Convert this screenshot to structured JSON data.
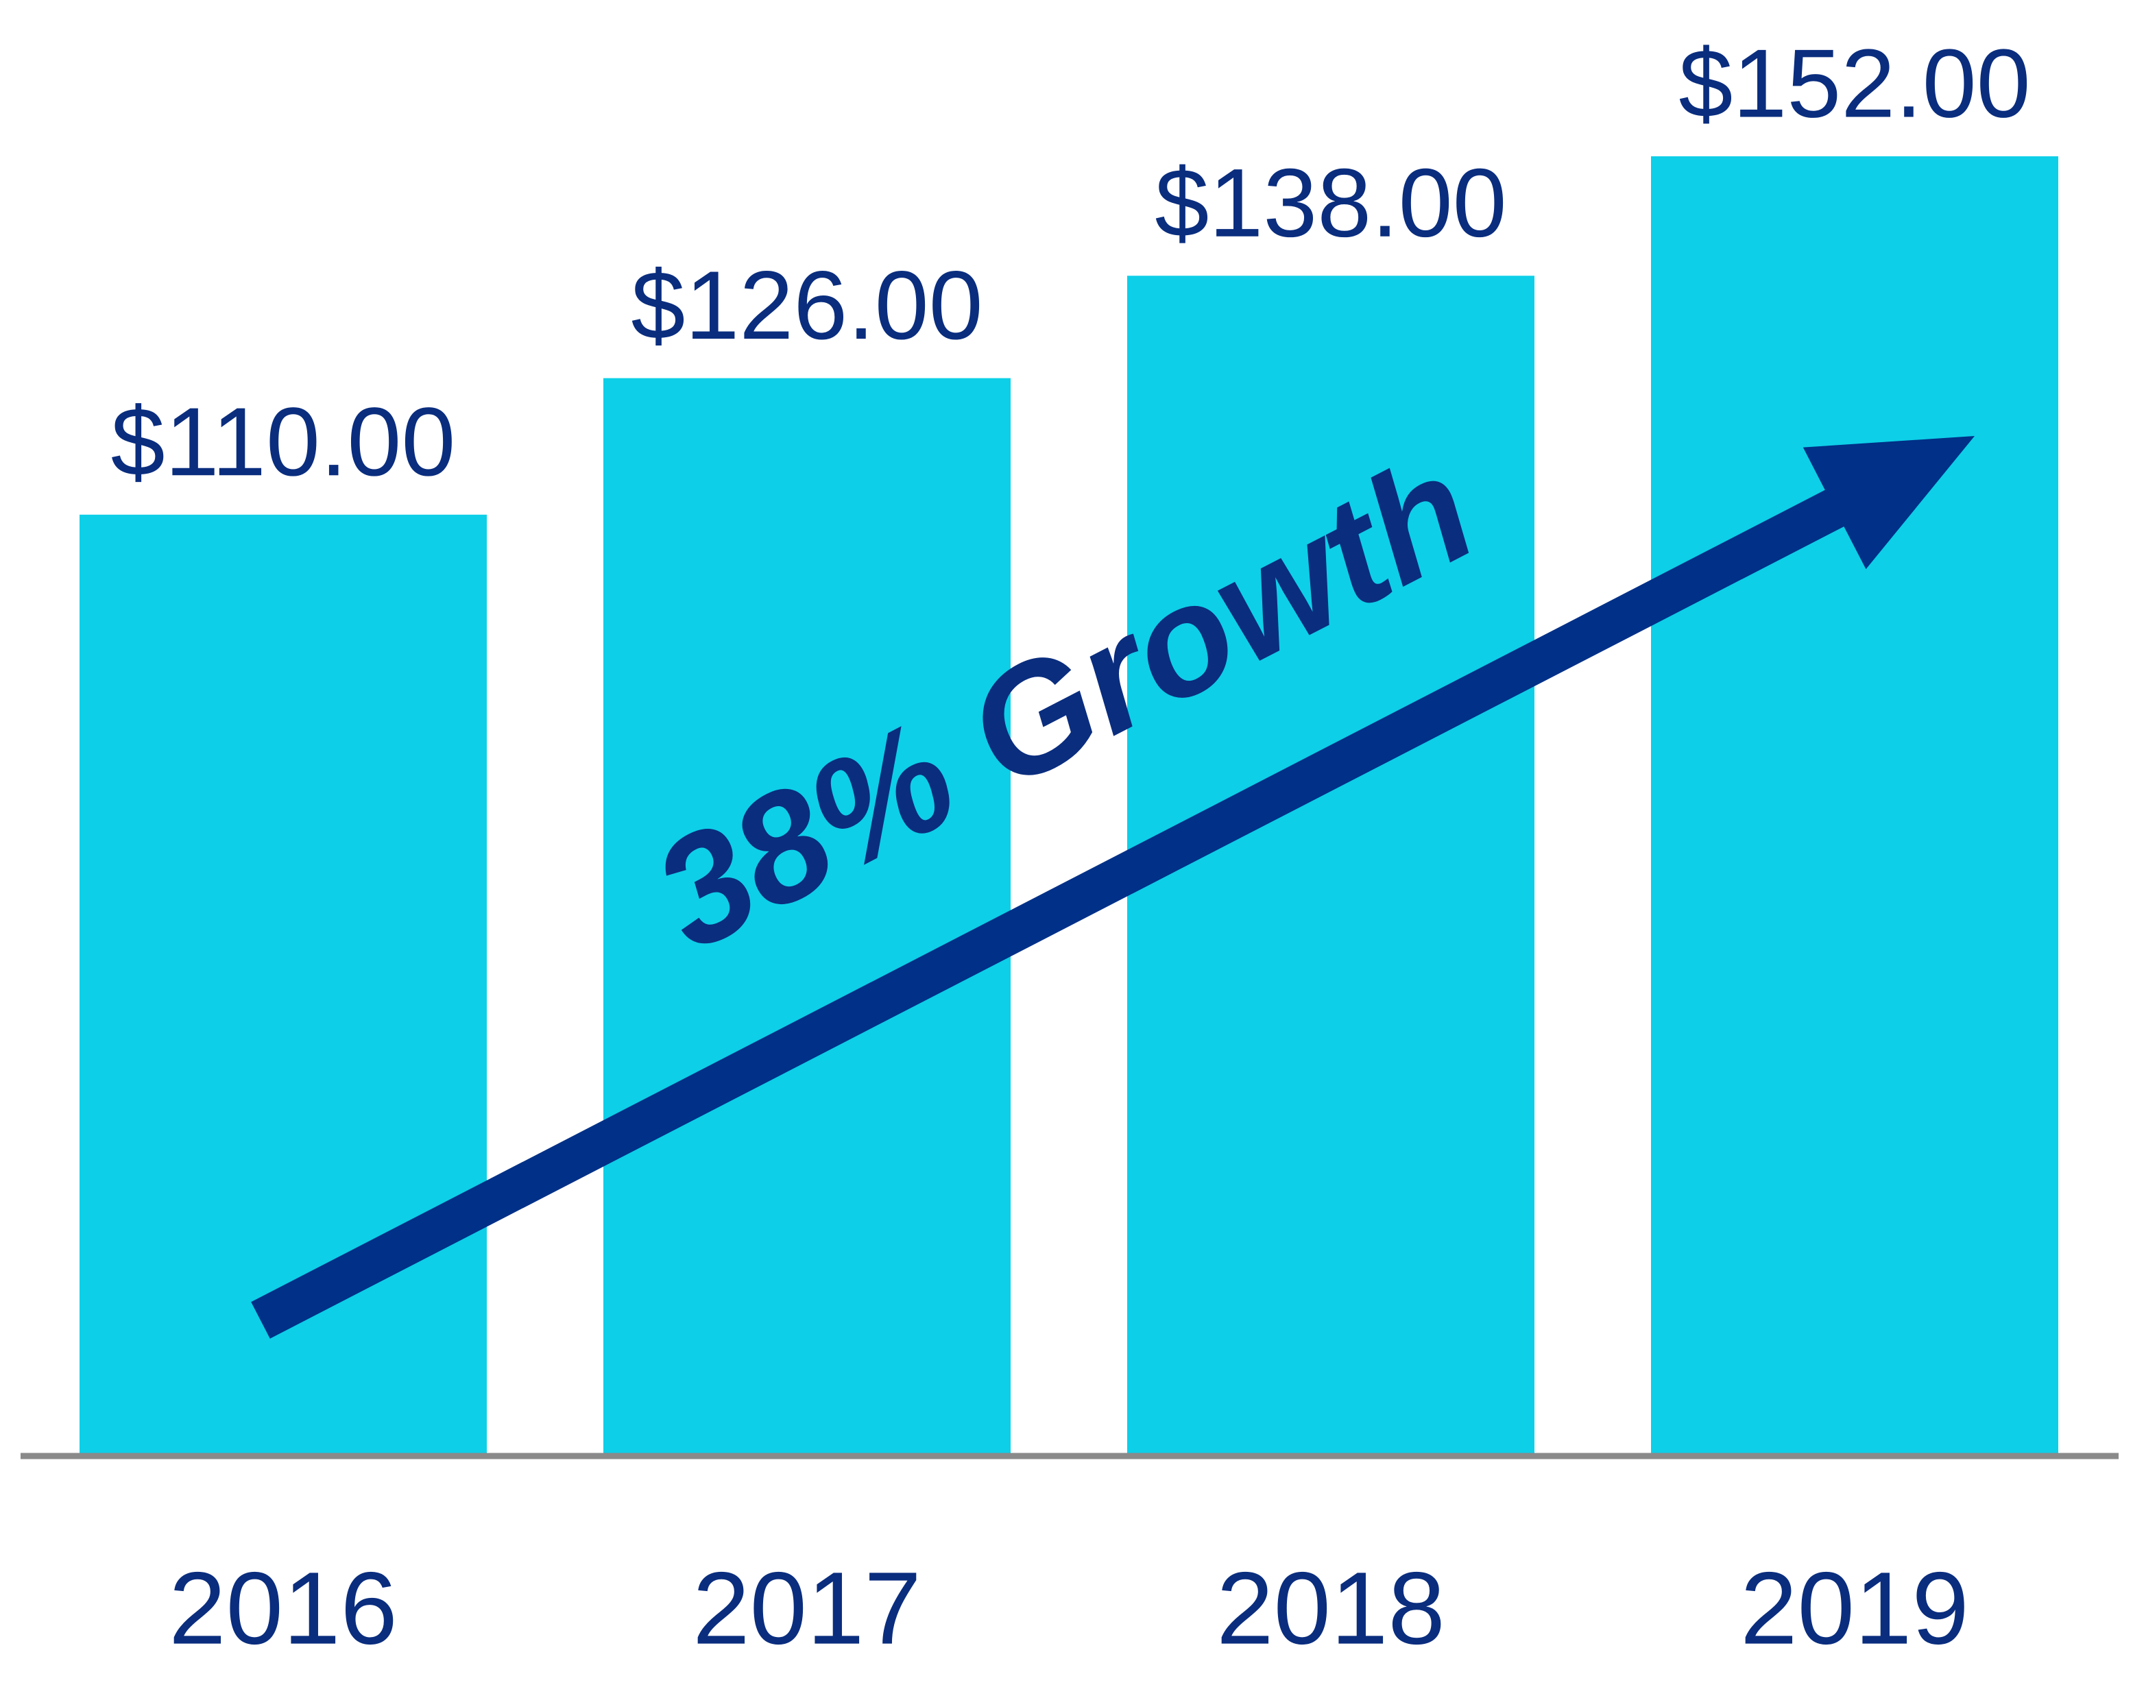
{
  "chart_data": {
    "type": "bar",
    "categories": [
      "2016",
      "2017",
      "2018",
      "2019"
    ],
    "values": [
      110,
      126,
      138,
      152
    ],
    "value_labels": [
      "$110.00",
      "$126.00",
      "$138.00",
      "$152.00"
    ],
    "color": "#0dcfe8",
    "annotation": "38% Growth"
  }
}
